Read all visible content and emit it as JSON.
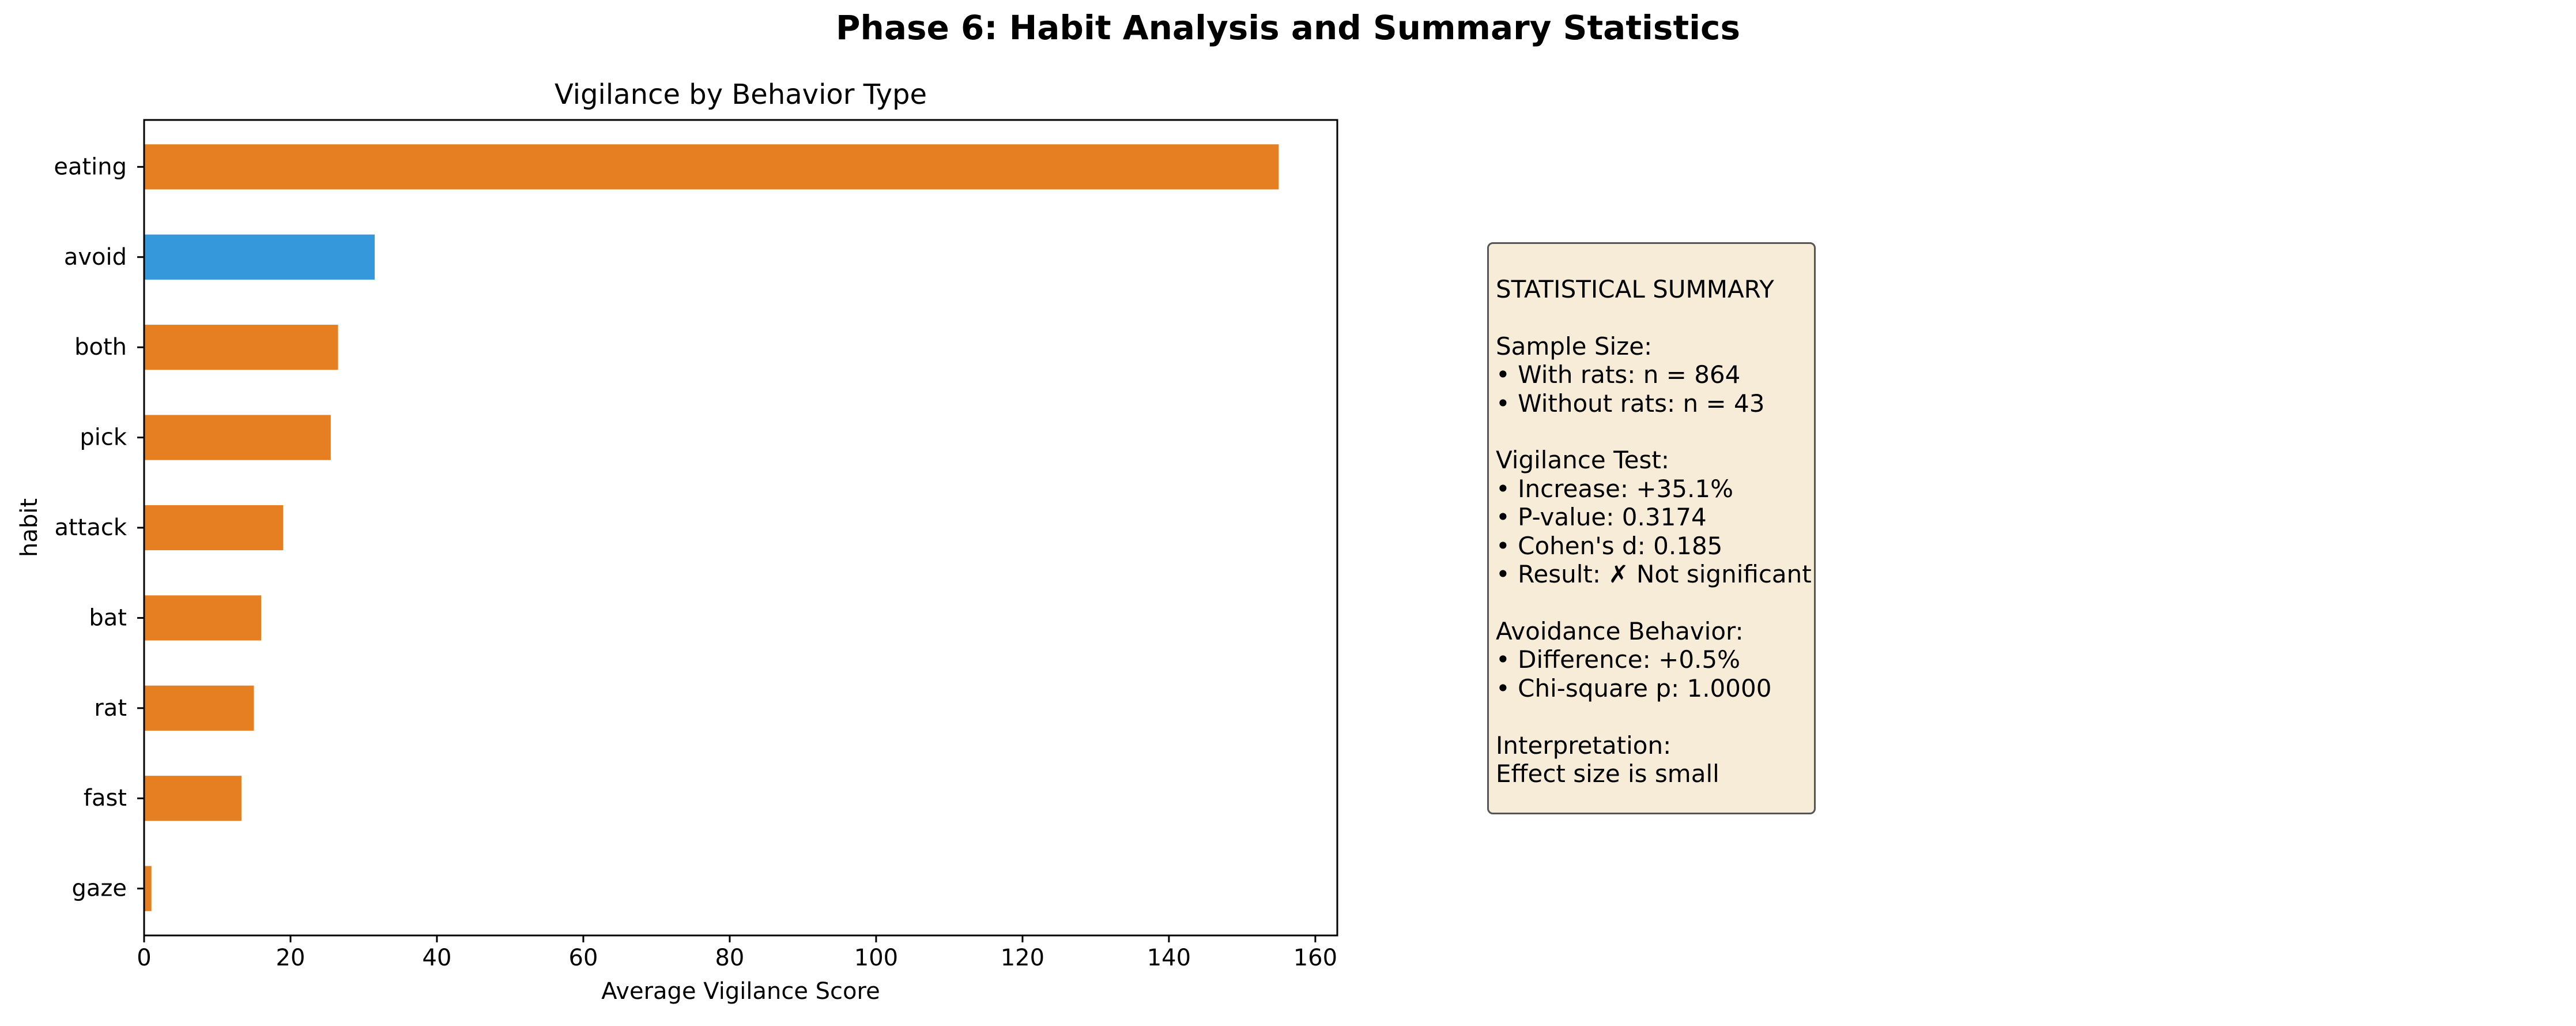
{
  "figure": {
    "title": "Phase 6: Habit Analysis and Summary Statistics"
  },
  "chart_data": {
    "type": "bar",
    "orientation": "horizontal",
    "title": "Vigilance by Behavior Type",
    "xlabel": "Average Vigilance Score",
    "ylabel": "habit",
    "categories": [
      "eating",
      "avoid",
      "both",
      "pick",
      "attack",
      "bat",
      "rat",
      "fast",
      "gaze"
    ],
    "values": [
      155,
      31.5,
      26.5,
      25.5,
      19,
      16,
      15,
      13.3,
      1
    ],
    "highlighted": [
      "avoid"
    ],
    "xlim": [
      0,
      163
    ],
    "xticks": [
      0,
      20,
      40,
      60,
      80,
      100,
      120,
      140,
      160
    ],
    "grid": false,
    "colors": {
      "default_bar": "#e67e22",
      "highlight_bar": "#3498db"
    }
  },
  "summary": {
    "lines": [
      "STATISTICAL SUMMARY",
      "",
      "Sample Size:",
      "• With rats: n = 864",
      "• Without rats: n = 43",
      "",
      "Vigilance Test:",
      "• Increase: +35.1%",
      "• P-value: 0.3174",
      "• Cohen's d: 0.185",
      "• Result: ✗ Not significant",
      "",
      "Avoidance Behavior:",
      "• Difference: +0.5%",
      "• Chi-square p: 1.0000",
      "",
      "Interpretation:",
      "Effect size is small"
    ],
    "colors": {
      "background": "#f7ecd8",
      "border": "#555555"
    }
  }
}
